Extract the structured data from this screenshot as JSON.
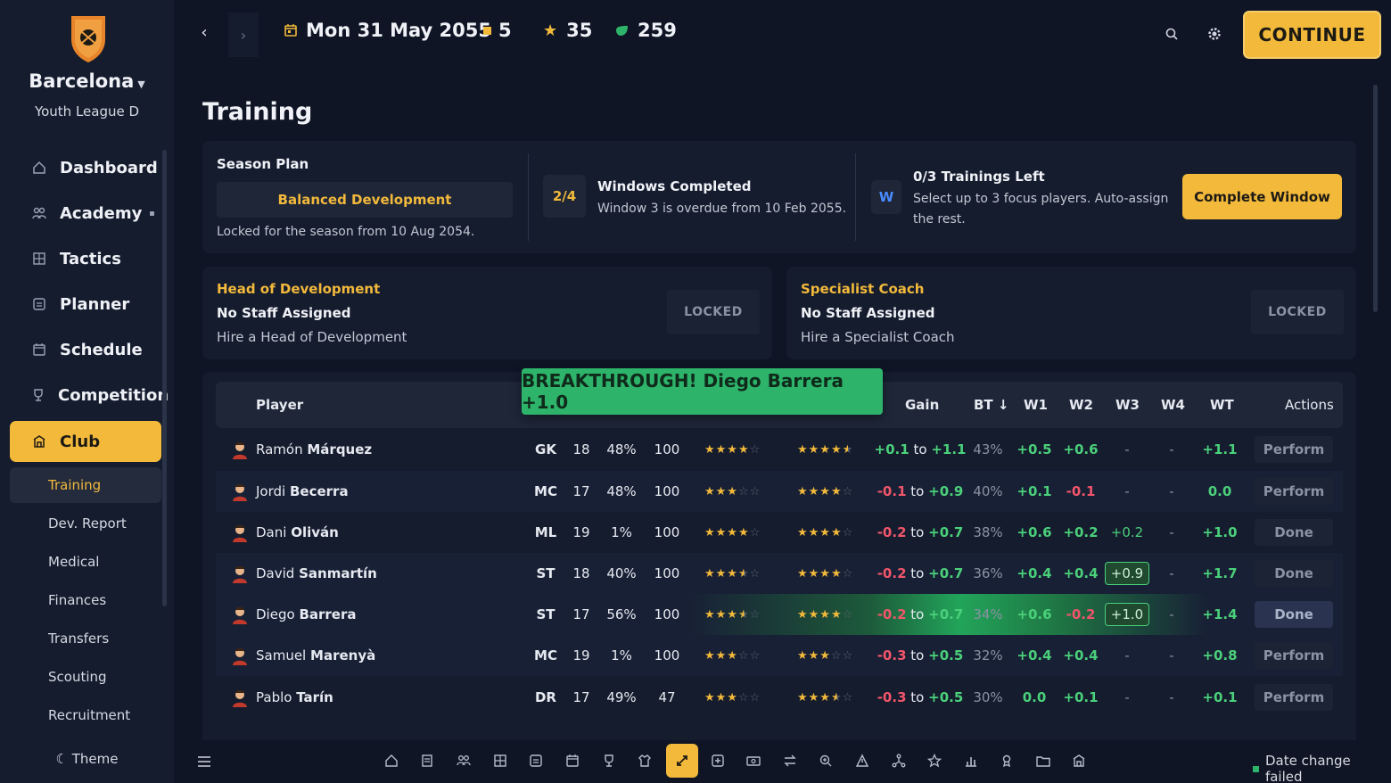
{
  "sidebar": {
    "club_name": "Barcelona",
    "league": "Youth League D",
    "nav": [
      {
        "label": "Dashboard",
        "icon": "home-icon"
      },
      {
        "label": "Academy",
        "icon": "people-icon"
      },
      {
        "label": "Tactics",
        "icon": "tactics-board-icon"
      },
      {
        "label": "Planner",
        "icon": "planner-icon"
      },
      {
        "label": "Schedule",
        "icon": "calendar-icon"
      },
      {
        "label": "Competition",
        "icon": "trophy-icon"
      },
      {
        "label": "Club",
        "icon": "club-building-icon"
      }
    ],
    "sub_nav": [
      "Training",
      "Dev. Report",
      "Medical",
      "Finances",
      "Transfers",
      "Scouting",
      "Recruitment"
    ],
    "theme_label": "Theme"
  },
  "topbar": {
    "date": "Mon 31 May 2055",
    "stat_a": "5",
    "stat_stars": "35",
    "stat_coins": "259",
    "continue_label": "CONTINUE"
  },
  "page": {
    "title": "Training"
  },
  "season": {
    "label": "Season Plan",
    "plan": "Balanced Development",
    "locked_note": "Locked for the season from 10 Aug 2054.",
    "windows_badge": "2/4",
    "windows_title": "Windows Completed",
    "windows_note": "Window 3 is overdue from 10 Feb 2055.",
    "trainings_badge": "W",
    "trainings_title": "0/3 Trainings Left",
    "trainings_note_1": "Select up to 3 focus players. Auto-assign",
    "trainings_note_2": "the rest.",
    "complete_label": "Complete Window"
  },
  "staff": [
    {
      "role": "Head of Development",
      "status": "No Staff Assigned",
      "hint": "Hire a Head of Development",
      "locked": "LOCKED"
    },
    {
      "role": "Specialist Coach",
      "status": "No Staff Assigned",
      "hint": "Hire a Specialist Coach",
      "locked": "LOCKED"
    }
  ],
  "toast": "BREAKTHROUGH! Diego Barrera +1.0",
  "table": {
    "headers": {
      "player": "Player",
      "gain": "Gain",
      "bt": "BT ↓",
      "w1": "W1",
      "w2": "W2",
      "w3": "W3",
      "w4": "W4",
      "wt": "WT",
      "actions": "Actions"
    },
    "to_word": "to",
    "rows": [
      {
        "first": "Ramón",
        "last": "Márquez",
        "pos": "GK",
        "age": "18",
        "pct": "48%",
        "val": "100",
        "cur_stars": 4,
        "pot_stars": 4.5,
        "gain_lo": "+0.1",
        "gain_hi": "+1.1",
        "bt": "43%",
        "w1": "+0.5",
        "w2": "+0.6",
        "w3": "-",
        "w4": "-",
        "wt": "+1.1",
        "action": "Perform"
      },
      {
        "first": "Jordi",
        "last": "Becerra",
        "pos": "MC",
        "age": "17",
        "pct": "48%",
        "val": "100",
        "cur_stars": 3,
        "pot_stars": 4,
        "gain_lo": "-0.1",
        "gain_hi": "+0.9",
        "bt": "40%",
        "w1": "+0.1",
        "w2": "-0.1",
        "w3": "-",
        "w4": "-",
        "wt": "0.0",
        "action": "Perform"
      },
      {
        "first": "Dani",
        "last": "Oliván",
        "pos": "ML",
        "age": "19",
        "pct": "1%",
        "val": "100",
        "cur_stars": 4,
        "pot_stars": 4,
        "gain_lo": "-0.2",
        "gain_hi": "+0.7",
        "bt": "38%",
        "w1": "+0.6",
        "w2": "+0.2",
        "w3": "+0.2",
        "w4": "-",
        "wt": "+1.0",
        "action": "Done"
      },
      {
        "first": "David",
        "last": "Sanmartín",
        "pos": "ST",
        "age": "18",
        "pct": "40%",
        "val": "100",
        "cur_stars": 3.5,
        "pot_stars": 4,
        "gain_lo": "-0.2",
        "gain_hi": "+0.7",
        "bt": "36%",
        "w1": "+0.4",
        "w2": "+0.4",
        "w3": "+0.9",
        "w4": "-",
        "wt": "+1.7",
        "action": "Done"
      },
      {
        "first": "Diego",
        "last": "Barrera",
        "pos": "ST",
        "age": "17",
        "pct": "56%",
        "val": "100",
        "cur_stars": 3.5,
        "pot_stars": 4,
        "gain_lo": "-0.2",
        "gain_hi": "+0.7",
        "bt": "34%",
        "w1": "+0.6",
        "w2": "-0.2",
        "w3": "+1.0",
        "w4": "-",
        "wt": "+1.4",
        "action": "Done"
      },
      {
        "first": "Samuel",
        "last": "Marenyà",
        "pos": "MC",
        "age": "19",
        "pct": "1%",
        "val": "100",
        "cur_stars": 3,
        "pot_stars": 3,
        "gain_lo": "-0.3",
        "gain_hi": "+0.5",
        "bt": "32%",
        "w1": "+0.4",
        "w2": "+0.4",
        "w3": "-",
        "w4": "-",
        "wt": "+0.8",
        "action": "Perform"
      },
      {
        "first": "Pablo",
        "last": "Tarín",
        "pos": "DR",
        "age": "17",
        "pct": "49%",
        "val": "47",
        "cur_stars": 3,
        "pot_stars": 3.5,
        "gain_lo": "-0.3",
        "gain_hi": "+0.5",
        "bt": "30%",
        "w1": "0.0",
        "w2": "+0.1",
        "w3": "-",
        "w4": "-",
        "wt": "+0.1",
        "action": "Perform"
      }
    ]
  },
  "bottombar": {
    "status": "Date change failed"
  },
  "colors": {
    "accent": "#f2b93b",
    "background": "#0f1524",
    "panel": "#151c2e",
    "positive": "#4ad07a",
    "negative": "#f0556a",
    "toast": "#2db46a"
  }
}
